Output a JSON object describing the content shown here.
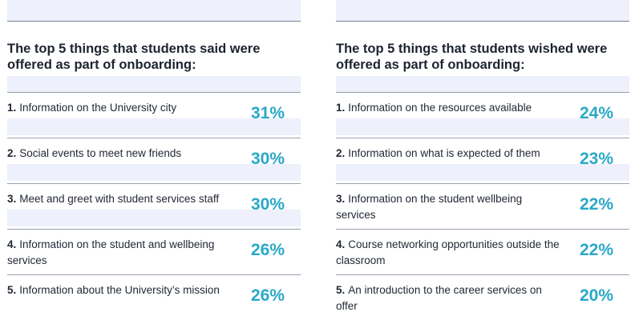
{
  "left": {
    "title": "The top 5 things that students said were offered as part of onboarding:",
    "items": [
      {
        "num": "1.",
        "text": "Information on the University city",
        "pct": "31%"
      },
      {
        "num": "2.",
        "text": "Social events to meet new friends",
        "pct": "30%"
      },
      {
        "num": "3.",
        "text": "Meet and greet with student services staff",
        "pct": "30%"
      },
      {
        "num": "4.",
        "text": "Information on the student and wellbeing services",
        "pct": "26%"
      },
      {
        "num": "5.",
        "text": "Information about the University’s mission",
        "pct": "26%"
      }
    ]
  },
  "right": {
    "title": "The top 5 things that students wished were offered as part of onboarding:",
    "items": [
      {
        "num": "1.",
        "text": "Information on the resources available",
        "pct": "24%"
      },
      {
        "num": "2.",
        "text": "Information on what is expected of them",
        "pct": "23%"
      },
      {
        "num": "3.",
        "text": "Information on the student wellbeing services",
        "pct": "22%"
      },
      {
        "num": "4.",
        "text": "Course networking opportunities outside the classroom",
        "pct": "22%"
      },
      {
        "num": "5.",
        "text": "An introduction to the career services on offer",
        "pct": "20%"
      }
    ]
  },
  "colors": {
    "accent": "#2aa8c7",
    "band": "#eef0fb",
    "text": "#1f2633"
  }
}
